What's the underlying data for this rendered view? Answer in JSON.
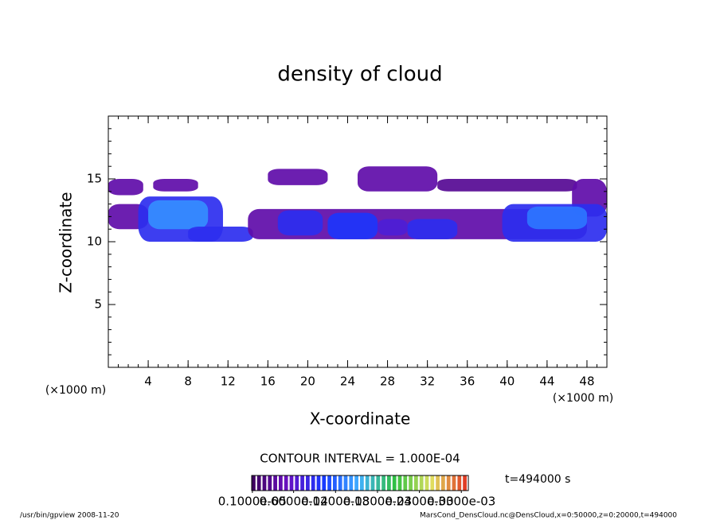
{
  "chart_data": {
    "type": "contour",
    "title": "density of cloud",
    "xlabel": "X-coordinate",
    "ylabel": "Z-coordinate",
    "xunit": "(×1000 m)",
    "yunit": "(×1000 m)",
    "xlim": [
      0,
      50
    ],
    "ylim": [
      0,
      20
    ],
    "xticks": [
      4,
      8,
      12,
      16,
      20,
      24,
      28,
      32,
      36,
      40,
      44,
      48
    ],
    "yticks": [
      5,
      10,
      15
    ],
    "xminor_step": 1,
    "yminor_step": 1,
    "contour_interval": "CONTOUR INTERVAL = 1.000E-04",
    "time_label": "t=494000 s",
    "footer_left": "/usr/bin/gpview  2008-11-20",
    "footer_right": "MarsCond_DensCloud.nc@DensCloud,x=0:50000,z=0:20000,t=494000",
    "colormap": [
      "#3a0058",
      "#6a10c0",
      "#1838ff",
      "#40b0ff",
      "#30c040",
      "#e0e060",
      "#e03020"
    ],
    "clim": [
      0,
      0.00031
    ],
    "cticks": [
      {
        "value": 1e-06,
        "label": "0.1000e-05"
      },
      {
        "value": 6e-05,
        "label": "0.6000e-04"
      },
      {
        "value": 0.00012,
        "label": "0.1200e-03"
      },
      {
        "value": 0.00018,
        "label": "0.1800e-03"
      },
      {
        "value": 0.00024,
        "label": "0.2400e-03"
      },
      {
        "value": 0.0003,
        "label": "0.3000e-03"
      }
    ],
    "patches": [
      {
        "x": [
          0,
          3.5
        ],
        "z": [
          13.7,
          15
        ],
        "value": 4e-05
      },
      {
        "x": [
          4.5,
          9
        ],
        "z": [
          14,
          15
        ],
        "value": 4e-05
      },
      {
        "x": [
          0,
          4
        ],
        "z": [
          11,
          13
        ],
        "value": 4e-05
      },
      {
        "x": [
          3,
          11.5
        ],
        "z": [
          10,
          13.6
        ],
        "value": 9e-05
      },
      {
        "x": [
          4,
          10
        ],
        "z": [
          11,
          13.3
        ],
        "value": 0.00014
      },
      {
        "x": [
          8,
          14.5
        ],
        "z": [
          10,
          11.2
        ],
        "value": 9e-05
      },
      {
        "x": [
          14,
          48
        ],
        "z": [
          10.2,
          12.6
        ],
        "value": 4e-05
      },
      {
        "x": [
          17,
          21.5
        ],
        "z": [
          10.5,
          12.5
        ],
        "value": 9e-05
      },
      {
        "x": [
          22,
          27
        ],
        "z": [
          10.2,
          12.3
        ],
        "value": 0.0001
      },
      {
        "x": [
          27,
          30
        ],
        "z": [
          10.5,
          11.8
        ],
        "value": 7e-05
      },
      {
        "x": [
          30,
          35
        ],
        "z": [
          10.2,
          11.8
        ],
        "value": 9e-05
      },
      {
        "x": [
          16,
          22
        ],
        "z": [
          14.5,
          15.8
        ],
        "value": 4e-05
      },
      {
        "x": [
          25,
          33
        ],
        "z": [
          14,
          16
        ],
        "value": 4e-05
      },
      {
        "x": [
          33,
          47
        ],
        "z": [
          14,
          15
        ],
        "value": 3e-05
      },
      {
        "x": [
          46.5,
          50
        ],
        "z": [
          12,
          15
        ],
        "value": 4e-05
      },
      {
        "x": [
          39.5,
          50
        ],
        "z": [
          10,
          13
        ],
        "value": 9e-05
      },
      {
        "x": [
          42,
          48
        ],
        "z": [
          11,
          12.8
        ],
        "value": 0.00013
      }
    ]
  }
}
